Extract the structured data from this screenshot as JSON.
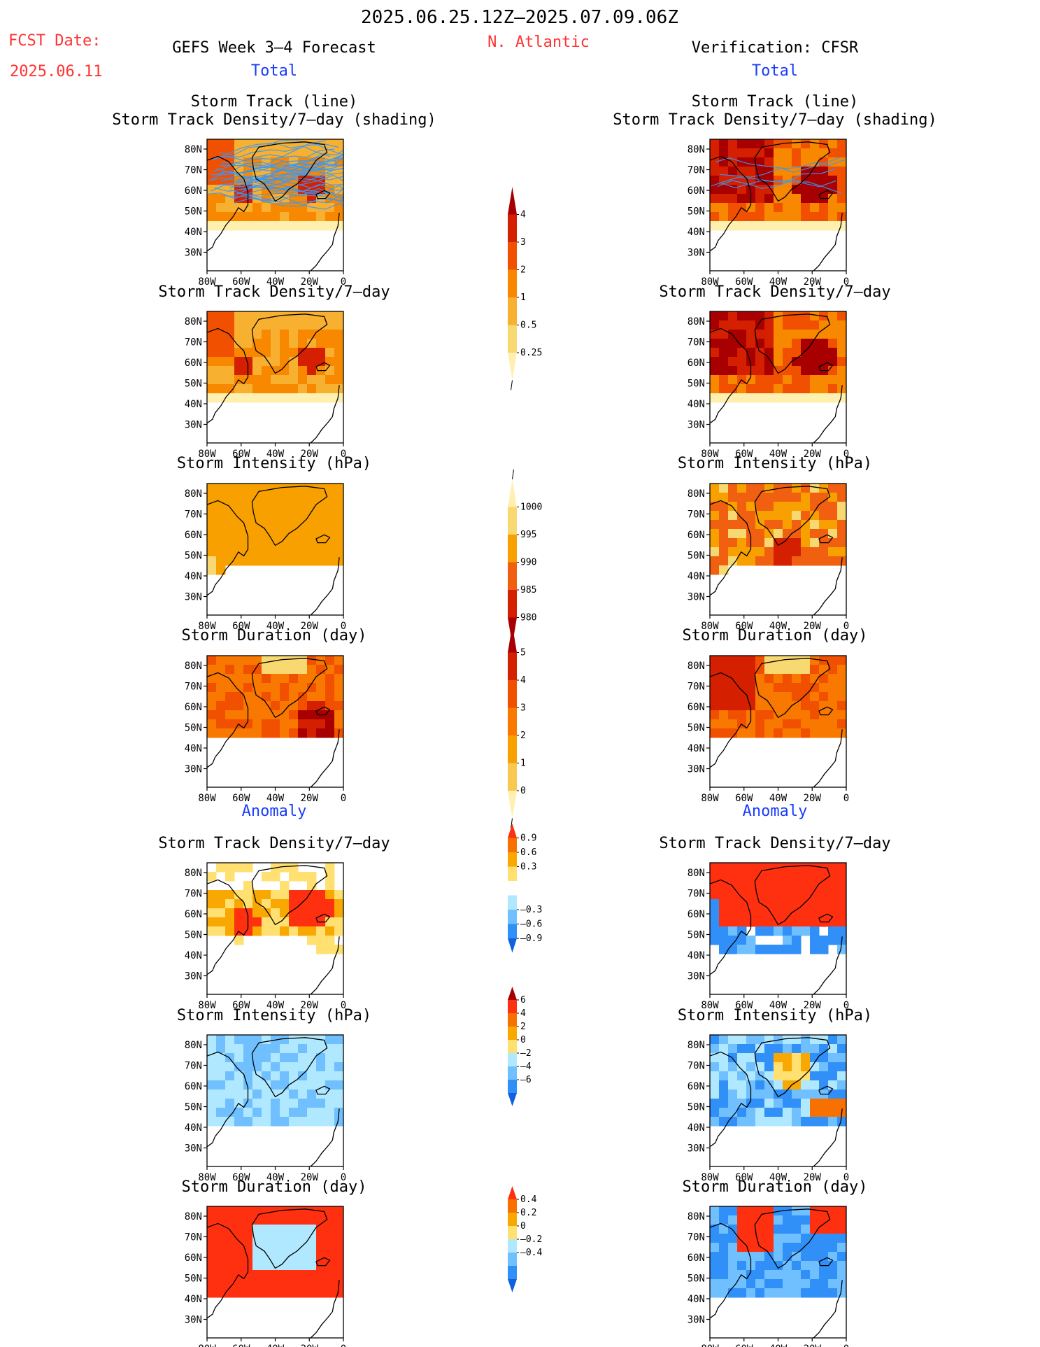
{
  "header": {
    "date_range": "2025.06.25.12Z–2025.07.09.06Z",
    "fcst_label": "FCST Date:",
    "fcst_date": "2025.06.11",
    "forecast_title": "GEFS Week 3–4 Forecast",
    "region": "N. Atlantic",
    "verification_title": "Verification: CFSR"
  },
  "sections": {
    "total": "Total",
    "anomaly": "Anomaly"
  },
  "panel_titles": {
    "track_line": "Storm Track (line)",
    "track_shading": "Storm Track Density/7–day (shading)",
    "density": "Storm Track Density/7–day",
    "intensity": "Storm Intensity (hPa)",
    "duration": "Storm Duration (day)"
  },
  "axes": {
    "lon": [
      "80W",
      "60W",
      "40W",
      "20W",
      "0"
    ],
    "lat": [
      "80N",
      "70N",
      "60N",
      "50N",
      "40N",
      "30N"
    ]
  },
  "colorbars": [
    {
      "id": "density",
      "labels": [
        "4",
        "3",
        "2",
        "1",
        "0.5",
        "0.25"
      ],
      "colors": [
        "#a80000",
        "#d42000",
        "#f05000",
        "#f88800",
        "#f8b030",
        "#f8d870",
        "#fff0b0"
      ],
      "tail_end": "bottom"
    },
    {
      "id": "intensity",
      "labels": [
        "1000",
        "995",
        "990",
        "985",
        "980"
      ],
      "colors": [
        "#fff0b0",
        "#f8d870",
        "#f8a000",
        "#f06010",
        "#d42000",
        "#a80000"
      ],
      "tail_end": "top"
    },
    {
      "id": "duration",
      "labels": [
        "5",
        "4",
        "3",
        "2",
        "1",
        "0"
      ],
      "colors": [
        "#a80000",
        "#d42000",
        "#f05000",
        "#f87800",
        "#f8a000",
        "#f8c850",
        "#fff0b0"
      ],
      "tail_end": "bottom"
    },
    {
      "id": "density_anom",
      "labels": [
        "0.9",
        "0.6",
        "0.3",
        "–0.3",
        "–0.6",
        "–0.9"
      ],
      "colors": [
        "#ff3010",
        "#f87000",
        "#f8a800",
        "#ffe070",
        "#ffffff",
        "#b0e8ff",
        "#70c0ff",
        "#3090f8",
        "#1060e0"
      ],
      "tail_end": "none"
    },
    {
      "id": "intensity_anom",
      "labels": [
        "6",
        "4",
        "2",
        "0",
        "–2",
        "–4",
        "–6"
      ],
      "colors": [
        "#a80000",
        "#ff3010",
        "#f87000",
        "#f8a800",
        "#ffe070",
        "#b0e8ff",
        "#70c0ff",
        "#3090f8",
        "#1060e0"
      ],
      "tail_end": "none"
    },
    {
      "id": "duration_anom",
      "labels": [
        "0.4",
        "0.2",
        "0",
        "–0.2",
        "–0.4"
      ],
      "colors": [
        "#ff3010",
        "#f87000",
        "#f8a800",
        "#ffe070",
        "#b0e8ff",
        "#70c0ff",
        "#3090f8",
        "#1060e0"
      ],
      "tail_end": "none"
    }
  ],
  "colors": {
    "title_red": "#ff3333",
    "title_blue": "#1a3cff",
    "track_line": "#3399ff",
    "coast": "#000000"
  }
}
